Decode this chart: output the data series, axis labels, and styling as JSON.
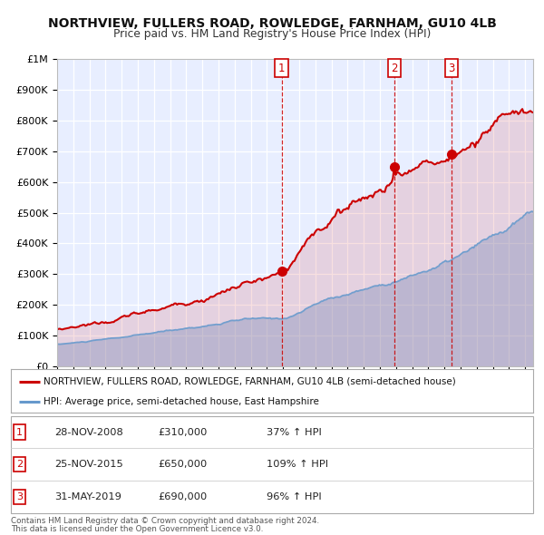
{
  "title": "NORTHVIEW, FULLERS ROAD, ROWLEDGE, FARNHAM, GU10 4LB",
  "subtitle": "Price paid vs. HM Land Registry's House Price Index (HPI)",
  "red_label": "NORTHVIEW, FULLERS ROAD, ROWLEDGE, FARNHAM, GU10 4LB (semi-detached house)",
  "blue_label": "HPI: Average price, semi-detached house, East Hampshire",
  "transactions": [
    {
      "num": 1,
      "date": "28-NOV-2008",
      "price": 310000,
      "hpi_pct": "37%",
      "x_year": 2008.91
    },
    {
      "num": 2,
      "date": "25-NOV-2015",
      "price": 650000,
      "hpi_pct": "109%",
      "x_year": 2015.91
    },
    {
      "num": 3,
      "date": "31-MAY-2019",
      "price": 690000,
      "hpi_pct": "96%",
      "x_year": 2019.42
    }
  ],
  "footnote1": "Contains HM Land Registry data © Crown copyright and database right 2024.",
  "footnote2": "This data is licensed under the Open Government Licence v3.0.",
  "ylim": [
    0,
    1000000
  ],
  "xlim_start": 1995,
  "xlim_end": 2024.5,
  "plot_bg_color": "#e8eeff",
  "grid_color": "#ffffff",
  "red_color": "#cc0000",
  "blue_color": "#6699cc",
  "vline_color": "#cc0000"
}
